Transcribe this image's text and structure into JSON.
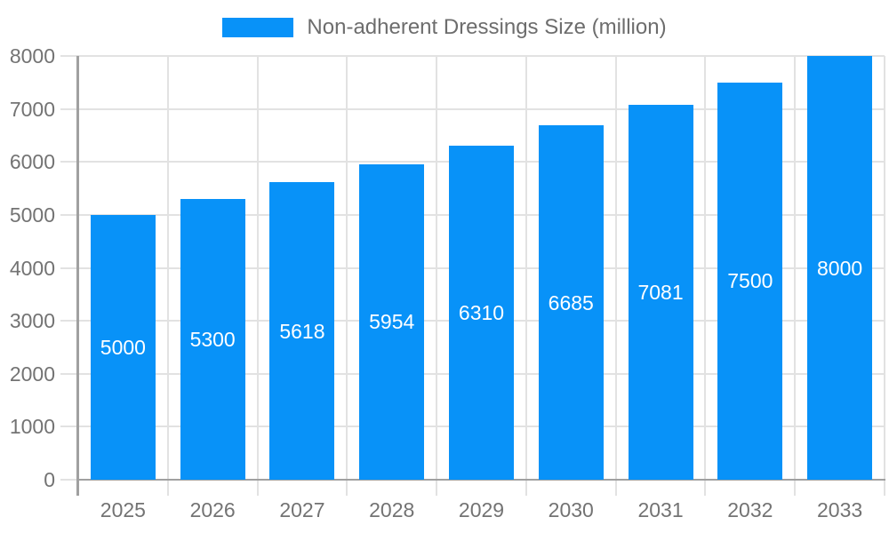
{
  "chart_data": {
    "type": "bar",
    "title": "Non-adherent Dressings Size (million)",
    "categories": [
      "2025",
      "2026",
      "2027",
      "2028",
      "2029",
      "2030",
      "2031",
      "2032",
      "2033"
    ],
    "values": [
      5000,
      5300,
      5618,
      5954,
      6310,
      6685,
      7081,
      7500,
      8000
    ],
    "xlabel": "",
    "ylabel": "",
    "ylim": [
      0,
      8000
    ],
    "ytick_step": 1000,
    "yticks": [
      0,
      1000,
      2000,
      3000,
      4000,
      5000,
      6000,
      7000,
      8000
    ],
    "grid": true,
    "legend_position": "top-center",
    "bar_labels": "inside-center-white",
    "colors": {
      "bar": "#0892f8",
      "grid": "#e2e2e2",
      "axis": "#a0a0a0",
      "tick_text": "#737373",
      "bar_label": "#ffffff",
      "legend_text": "#6d6d6d",
      "background": "#ffffff"
    }
  }
}
